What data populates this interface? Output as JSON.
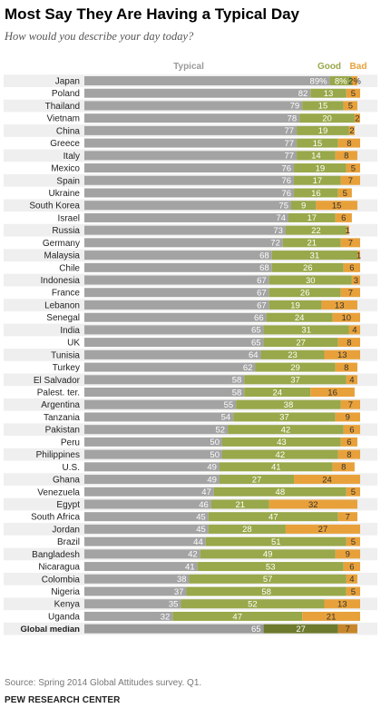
{
  "header": {
    "title": "Most Say They Are Having a Typical Day",
    "subtitle": "How would you describe your day today?"
  },
  "footer": {
    "source": "Source: Spring 2014 Global Attitudes survey. Q1.",
    "credit": "PEW RESEARCH CENTER"
  },
  "colors": {
    "typical": "#a3a3a3",
    "good": "#98a84a",
    "bad": "#e8a13a",
    "median_typical": "#9b9b9b",
    "median_good": "#6e7a2e",
    "median_bad": "#c7862c",
    "row_band": "#efefef",
    "label_good": "#98a84a",
    "label_bad": "#e8a13a"
  },
  "chart_data": {
    "type": "bar",
    "stacked": true,
    "orientation": "horizontal",
    "legend": {
      "position": "top",
      "entries": [
        "Typical",
        "Good",
        "Bad"
      ]
    },
    "categories": [
      "Japan",
      "Poland",
      "Thailand",
      "Vietnam",
      "China",
      "Greece",
      "Italy",
      "Mexico",
      "Spain",
      "Ukraine",
      "South Korea",
      "Israel",
      "Russia",
      "Germany",
      "Malaysia",
      "Chile",
      "Indonesia",
      "France",
      "Lebanon",
      "Senegal",
      "India",
      "UK",
      "Tunisia",
      "Turkey",
      "El Salvador",
      "Palest. ter.",
      "Argentina",
      "Tanzania",
      "Pakistan",
      "Peru",
      "Philippines",
      "U.S.",
      "Ghana",
      "Venezuela",
      "Egypt",
      "South Africa",
      "Jordan",
      "Brazil",
      "Bangladesh",
      "Nicaragua",
      "Colombia",
      "Nigeria",
      "Kenya",
      "Uganda",
      "Global median"
    ],
    "series": [
      {
        "name": "Typical",
        "values": [
          89,
          82,
          79,
          78,
          77,
          77,
          77,
          76,
          76,
          76,
          75,
          74,
          73,
          72,
          68,
          68,
          67,
          67,
          67,
          66,
          65,
          65,
          64,
          62,
          58,
          58,
          55,
          54,
          52,
          50,
          50,
          49,
          49,
          47,
          46,
          45,
          45,
          44,
          42,
          41,
          38,
          37,
          35,
          32,
          65
        ],
        "labels": [
          "89%",
          "82",
          "79",
          "78",
          "77",
          "77",
          "77",
          "76",
          "76",
          "76",
          "75",
          "74",
          "73",
          "72",
          "68",
          "68",
          "67",
          "67",
          "67",
          "66",
          "65",
          "65",
          "64",
          "62",
          "58",
          "58",
          "55",
          "54",
          "52",
          "50",
          "50",
          "49",
          "49",
          "47",
          "46",
          "45",
          "45",
          "44",
          "42",
          "41",
          "38",
          "37",
          "35",
          "32",
          "65"
        ]
      },
      {
        "name": "Good",
        "values": [
          8,
          13,
          15,
          20,
          19,
          15,
          14,
          19,
          17,
          16,
          9,
          17,
          22,
          21,
          31,
          26,
          30,
          26,
          19,
          24,
          31,
          27,
          23,
          29,
          37,
          24,
          38,
          37,
          42,
          43,
          42,
          41,
          27,
          48,
          21,
          47,
          28,
          51,
          49,
          53,
          57,
          58,
          52,
          47,
          27
        ],
        "labels": [
          "8%",
          "13",
          "15",
          "20",
          "19",
          "15",
          "14",
          "19",
          "17",
          "16",
          "9",
          "17",
          "22",
          "21",
          "31",
          "26",
          "30",
          "26",
          "19",
          "24",
          "31",
          "27",
          "23",
          "29",
          "37",
          "24",
          "38",
          "37",
          "42",
          "43",
          "42",
          "41",
          "27",
          "48",
          "21",
          "47",
          "28",
          "51",
          "49",
          "53",
          "57",
          "58",
          "52",
          "47",
          "27"
        ]
      },
      {
        "name": "Bad",
        "values": [
          2,
          5,
          5,
          2,
          2,
          8,
          8,
          5,
          7,
          5,
          15,
          6,
          1,
          7,
          1,
          6,
          3,
          7,
          13,
          10,
          4,
          8,
          13,
          8,
          4,
          16,
          7,
          9,
          6,
          6,
          8,
          8,
          24,
          5,
          32,
          7,
          27,
          5,
          9,
          6,
          4,
          5,
          13,
          21,
          7
        ],
        "labels": [
          "2%",
          "5",
          "5",
          "2",
          "2",
          "8",
          "8",
          "5",
          "7",
          "5",
          "15",
          "6",
          "1",
          "7",
          "1",
          "6",
          "3",
          "7",
          "13",
          "10",
          "4",
          "8",
          "13",
          "8",
          "4",
          "16",
          "7",
          "9",
          "6",
          "6",
          "8",
          "8",
          "24",
          "5",
          "32",
          "7",
          "27",
          "5",
          "9",
          "6",
          "4",
          "5",
          "13",
          "21",
          "7"
        ]
      }
    ],
    "highlight_category": "Global median"
  }
}
